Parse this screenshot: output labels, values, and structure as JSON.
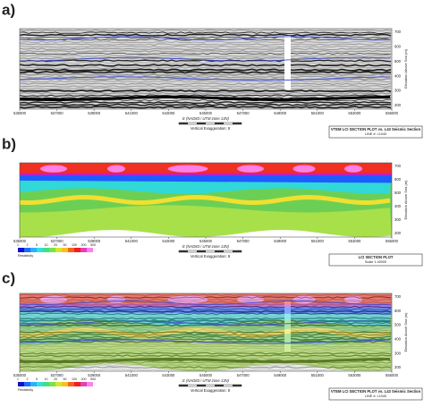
{
  "panels": [
    {
      "label": "a)",
      "title": "VTEM LCI SECTION PLOT vs. L43 Seismic Section",
      "subtitle": "LINE #: L1040",
      "x_axis_label": "E (NAD83 / UTM zone 13N)",
      "scale_note": "Vertical Exaggeration: 8",
      "y_axis_label": "Elevation Above Sea (m)",
      "x_ticks": [
        535000,
        537000,
        539000,
        541000,
        543000,
        545000,
        547000,
        549000,
        551000,
        553000,
        555000
      ],
      "y_ticks": [
        700,
        600,
        500,
        400,
        300,
        200
      ]
    },
    {
      "label": "b)",
      "title": "LCI SECTION PLOT",
      "subtitle": "Scale 1:40000",
      "x_axis_label": "E (NAD83 / UTM zone 13N)",
      "scale_note": "Vertical Exaggeration: 8",
      "y_axis_label": "Elevation Above Sea (m)",
      "colorbar_title": "Resistivity",
      "colorbar_ticks": [
        "1",
        "2",
        "5",
        "10",
        "20",
        "50",
        "100",
        "200",
        "500"
      ],
      "x_ticks": [
        535000,
        537000,
        539000,
        541000,
        543000,
        545000,
        547000,
        549000,
        551000,
        553000,
        555000
      ],
      "y_ticks": [
        700,
        600,
        500,
        400,
        300,
        200
      ]
    },
    {
      "label": "c)",
      "title": "VTEM LCI SECTION PLOT vs. L43 Seismic Section",
      "subtitle": "LINE #: L1040",
      "x_axis_label": "E (NAD83 / UTM zone 13N)",
      "scale_note": "Vertical Exaggeration: 8",
      "y_axis_label": "Elevation Above Sea (m)",
      "colorbar_title": "Resistivity",
      "colorbar_ticks": [
        "1",
        "2",
        "5",
        "10",
        "20",
        "50",
        "100",
        "200",
        "500"
      ],
      "x_ticks": [
        535000,
        537000,
        539000,
        541000,
        543000,
        545000,
        547000,
        549000,
        551000,
        553000,
        555000
      ],
      "y_ticks": [
        700,
        600,
        500,
        400,
        300,
        200
      ]
    }
  ]
}
